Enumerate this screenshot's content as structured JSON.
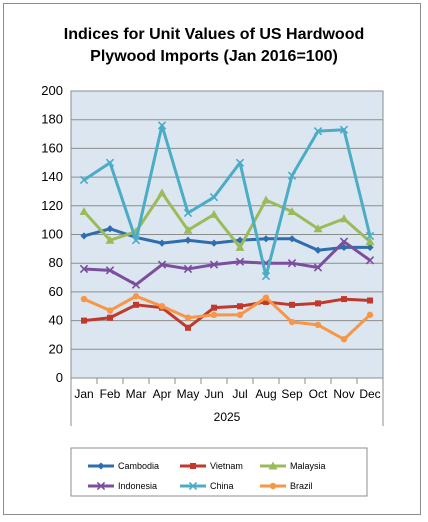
{
  "chart_data": {
    "type": "line",
    "title_line1": "Indices for Unit Values of US Hardwood",
    "title_line2": "Plywood Imports (Jan 2016=100)",
    "categories": [
      "Jan",
      "Feb",
      "Mar",
      "Apr",
      "May",
      "Jun",
      "Jul",
      "Aug",
      "Sep",
      "Oct",
      "Nov",
      "Dec"
    ],
    "xlabel": "2025",
    "ylabel": "",
    "ylim": [
      0,
      200
    ],
    "yticks": [
      0,
      20,
      40,
      60,
      80,
      100,
      120,
      140,
      160,
      180,
      200
    ],
    "grid": true,
    "legend_position": "bottom",
    "plot_background": "#dce6f1",
    "series": [
      {
        "name": "Cambodia",
        "color": "#2e6dae",
        "marker": "diamond",
        "values": [
          99,
          104,
          98,
          94,
          96,
          94,
          96,
          97,
          97,
          89,
          91,
          91
        ]
      },
      {
        "name": "Vietnam",
        "color": "#c0392b",
        "marker": "square",
        "values": [
          40,
          42,
          51,
          49,
          35,
          49,
          50,
          53,
          51,
          52,
          55,
          54
        ]
      },
      {
        "name": "Malaysia",
        "color": "#9bbb59",
        "marker": "triangle",
        "values": [
          116,
          96,
          102,
          129,
          103,
          114,
          91,
          124,
          116,
          104,
          111,
          95
        ]
      },
      {
        "name": "Indonesia",
        "color": "#7b4f9e",
        "marker": "x",
        "values": [
          76,
          75,
          65,
          79,
          76,
          79,
          81,
          80,
          80,
          77,
          95,
          82
        ]
      },
      {
        "name": "China",
        "color": "#4bacc6",
        "marker": "x",
        "values": [
          138,
          150,
          96,
          176,
          115,
          126,
          150,
          71,
          141,
          172,
          173,
          99
        ]
      },
      {
        "name": "Brazil",
        "color": "#f79646",
        "marker": "circle",
        "values": [
          55,
          47,
          57,
          50,
          42,
          44,
          44,
          56,
          39,
          37,
          27,
          44
        ]
      }
    ]
  }
}
